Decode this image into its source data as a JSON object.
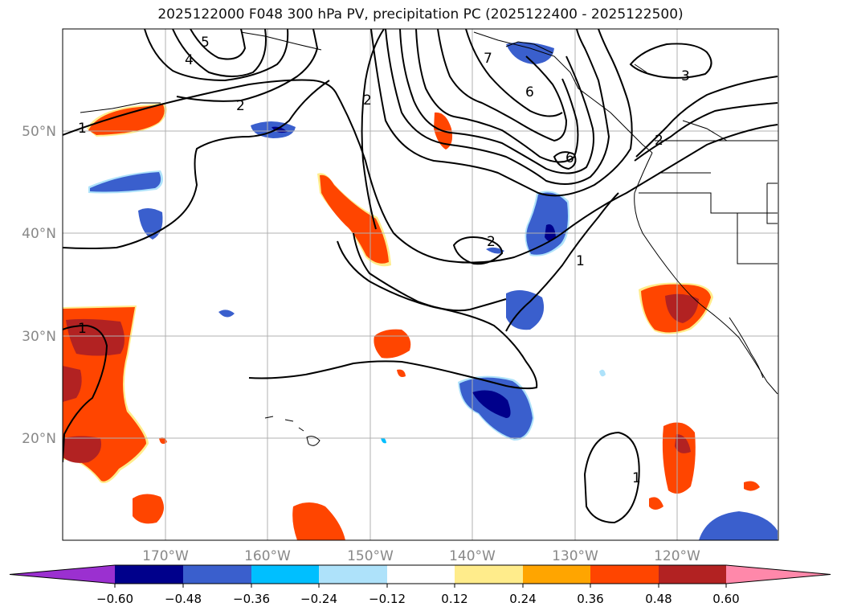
{
  "title": "2025122000 F048 300 hPa PV, precipitation PC (2025122400 - 2025122500)",
  "axes": {
    "lon_labels": [
      "170°W",
      "160°W",
      "150°W",
      "140°W",
      "130°W",
      "120°W"
    ],
    "lat_labels": [
      "50°N",
      "40°N",
      "30°N",
      "20°N"
    ]
  },
  "colorbar": {
    "tick_labels": [
      "−0.60",
      "−0.48",
      "−0.36",
      "−0.24",
      "−0.12",
      "0.12",
      "0.24",
      "0.36",
      "0.48",
      "0.60"
    ],
    "colors": [
      "#9b30d0",
      "#00008b",
      "#3a5fcd",
      "#00bfff",
      "#aee2fa",
      "#ffffff",
      "#ffec8b",
      "#ffa500",
      "#ff4500",
      "#b22222",
      "#ff88aa"
    ]
  },
  "contour_labels": [
    "5",
    "4",
    "2",
    "1",
    "2",
    "7",
    "6",
    "3",
    "2",
    "6",
    "2",
    "1",
    "1",
    "1"
  ],
  "colors": {
    "grid": "#b0b0b0",
    "axis_text": "#888888",
    "contour": "#000000",
    "coast": "#000000"
  }
}
